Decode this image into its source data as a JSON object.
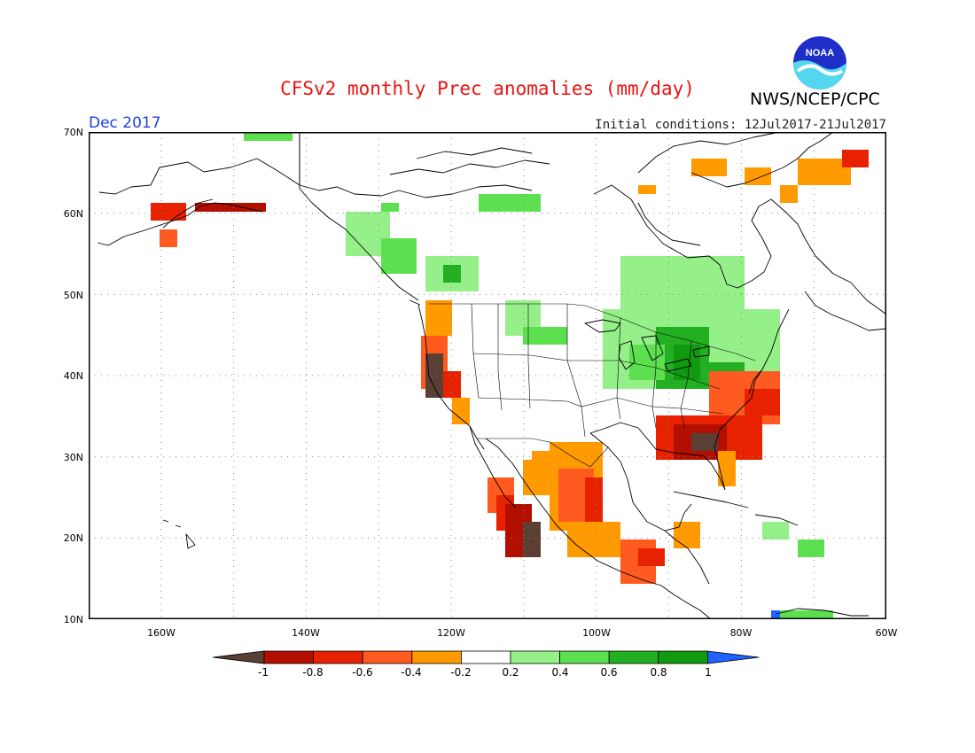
{
  "header": {
    "title": "CFSv2 monthly Prec anomalies (mm/day)",
    "agency": "NWS/NCEP/CPC",
    "month": "Dec 2017",
    "initial_conditions": "Initial conditions: 12Jul2017-21Jul2017",
    "logo_text": "NOAA"
  },
  "axes": {
    "lat_labels": [
      "70N",
      "60N",
      "50N",
      "40N",
      "30N",
      "20N",
      "10N"
    ],
    "lon_labels": [
      "160W",
      "140W",
      "120W",
      "100W",
      "80W",
      "60W"
    ]
  },
  "colorbar": {
    "labels": [
      "-1",
      "-0.8",
      "-0.6",
      "-0.4",
      "-0.2",
      "0.2",
      "0.4",
      "0.6",
      "0.8",
      "1"
    ],
    "colors": [
      "#5a3f35",
      "#b30f00",
      "#e82200",
      "#ff5a20",
      "#ff9a00",
      "#ffffff",
      "#96f08a",
      "#5ce050",
      "#22b022",
      "#0f9a0f",
      "#2062ff"
    ]
  },
  "map_extent": {
    "lon": [
      -170,
      -60
    ],
    "lat": [
      10,
      70
    ]
  }
}
